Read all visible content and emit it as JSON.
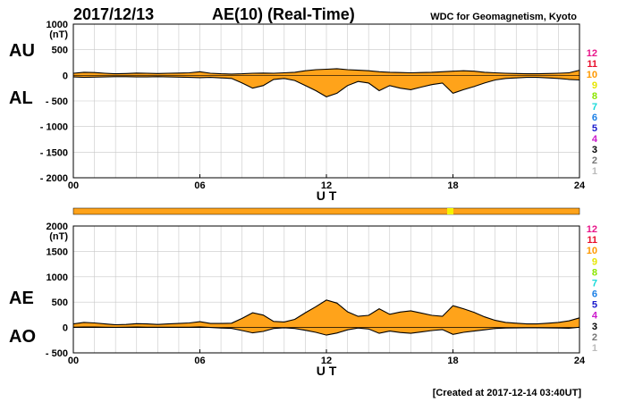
{
  "header": {
    "date": "2017/12/13",
    "title": "AE(10) (Real-Time)",
    "source": "WDC for Geomagnetism, Kyoto"
  },
  "footer": {
    "created": "[Created at 2017-12-14 03:40UT]"
  },
  "colors": {
    "fill": "#ffa31a",
    "outline": "#000000",
    "grid": "#c8c8c8",
    "status_bar": "#ffa31a",
    "status_highlight": "#f4f400"
  },
  "station_legend": [
    {
      "label": "12",
      "color": "#e8168a"
    },
    {
      "label": "11",
      "color": "#e8102c"
    },
    {
      "label": "10",
      "color": "#ff9900"
    },
    {
      "label": "9",
      "color": "#e6e600"
    },
    {
      "label": "8",
      "color": "#8be600"
    },
    {
      "label": "7",
      "color": "#19d9d9"
    },
    {
      "label": "6",
      "color": "#1a7fe6"
    },
    {
      "label": "5",
      "color": "#1a1acc"
    },
    {
      "label": "4",
      "color": "#cc19cc"
    },
    {
      "label": "3",
      "color": "#000000"
    },
    {
      "label": "2",
      "color": "#777777"
    },
    {
      "label": "1",
      "color": "#bbbbbb"
    }
  ],
  "chart_data": [
    {
      "type": "area",
      "units": "(nT)",
      "side_labels": [
        "AU",
        "AL"
      ],
      "xlabel": "U T",
      "xticks": [
        "00",
        "06",
        "12",
        "18",
        "24"
      ],
      "xlim": [
        0,
        24
      ],
      "yticks": [
        "1000",
        "500",
        "0",
        "- 500",
        "- 1000",
        "- 1500",
        "- 2000"
      ],
      "ylim": [
        -2000,
        1000
      ],
      "grid": true,
      "series": [
        {
          "key": "AU",
          "x": [
            0,
            0.5,
            1,
            1.5,
            2,
            2.5,
            3,
            3.5,
            4,
            4.5,
            5,
            5.5,
            6,
            6.5,
            7,
            7.5,
            8,
            8.5,
            9,
            9.5,
            10,
            10.5,
            11,
            11.5,
            12,
            12.5,
            13,
            13.5,
            14,
            14.5,
            15,
            15.5,
            16,
            16.5,
            17,
            17.5,
            18,
            18.5,
            19,
            19.5,
            20,
            20.5,
            21,
            21.5,
            22,
            22.5,
            23,
            23.5,
            24
          ],
          "values": [
            40,
            60,
            55,
            40,
            30,
            35,
            45,
            40,
            35,
            40,
            45,
            50,
            70,
            40,
            30,
            25,
            30,
            40,
            45,
            40,
            50,
            60,
            90,
            110,
            120,
            130,
            110,
            100,
            90,
            70,
            60,
            55,
            50,
            55,
            60,
            70,
            80,
            90,
            80,
            60,
            50,
            40,
            35,
            30,
            30,
            35,
            40,
            50,
            100
          ]
        },
        {
          "key": "AL",
          "x": [
            0,
            0.5,
            1,
            1.5,
            2,
            2.5,
            3,
            3.5,
            4,
            4.5,
            5,
            5.5,
            6,
            6.5,
            7,
            7.5,
            8,
            8.5,
            9,
            9.5,
            10,
            10.5,
            11,
            11.5,
            12,
            12.5,
            13,
            13.5,
            14,
            14.5,
            15,
            15.5,
            16,
            16.5,
            17,
            17.5,
            18,
            18.5,
            19,
            19.5,
            20,
            20.5,
            21,
            21.5,
            22,
            22.5,
            23,
            23.5,
            24
          ],
          "values": [
            -30,
            -40,
            -35,
            -30,
            -25,
            -25,
            -30,
            -30,
            -25,
            -30,
            -35,
            -40,
            -45,
            -40,
            -50,
            -60,
            -150,
            -250,
            -200,
            -80,
            -60,
            -100,
            -200,
            -300,
            -420,
            -350,
            -200,
            -120,
            -150,
            -300,
            -200,
            -250,
            -280,
            -230,
            -180,
            -150,
            -350,
            -280,
            -220,
            -150,
            -90,
            -60,
            -50,
            -40,
            -40,
            -50,
            -60,
            -80,
            -90
          ]
        }
      ]
    },
    {
      "type": "area",
      "units": "(nT)",
      "side_labels": [
        "AE",
        "AO"
      ],
      "xlabel": "U T",
      "xticks": [
        "00",
        "06",
        "12",
        "18",
        "24"
      ],
      "xlim": [
        0,
        24
      ],
      "yticks": [
        "2000",
        "1500",
        "1000",
        "500",
        "0",
        "- 500"
      ],
      "ylim": [
        -500,
        2000
      ],
      "grid": true,
      "series": [
        {
          "key": "AE",
          "x": [
            0,
            0.5,
            1,
            1.5,
            2,
            2.5,
            3,
            3.5,
            4,
            4.5,
            5,
            5.5,
            6,
            6.5,
            7,
            7.5,
            8,
            8.5,
            9,
            9.5,
            10,
            10.5,
            11,
            11.5,
            12,
            12.5,
            13,
            13.5,
            14,
            14.5,
            15,
            15.5,
            16,
            16.5,
            17,
            17.5,
            18,
            18.5,
            19,
            19.5,
            20,
            20.5,
            21,
            21.5,
            22,
            22.5,
            23,
            23.5,
            24
          ],
          "values": [
            70,
            100,
            90,
            70,
            55,
            60,
            75,
            70,
            60,
            70,
            80,
            90,
            115,
            80,
            80,
            85,
            180,
            290,
            245,
            120,
            110,
            160,
            290,
            410,
            540,
            480,
            310,
            220,
            240,
            370,
            260,
            305,
            330,
            285,
            240,
            220,
            430,
            370,
            300,
            210,
            140,
            100,
            85,
            70,
            70,
            85,
            100,
            130,
            190
          ]
        },
        {
          "key": "AO",
          "x": [
            0,
            0.5,
            1,
            1.5,
            2,
            2.5,
            3,
            3.5,
            4,
            4.5,
            5,
            5.5,
            6,
            6.5,
            7,
            7.5,
            8,
            8.5,
            9,
            9.5,
            10,
            10.5,
            11,
            11.5,
            12,
            12.5,
            13,
            13.5,
            14,
            14.5,
            15,
            15.5,
            16,
            16.5,
            17,
            17.5,
            18,
            18.5,
            19,
            19.5,
            20,
            20.5,
            21,
            21.5,
            22,
            22.5,
            23,
            23.5,
            24
          ],
          "values": [
            5,
            10,
            10,
            5,
            3,
            5,
            8,
            5,
            5,
            5,
            5,
            5,
            12,
            0,
            -10,
            -18,
            -60,
            -105,
            -78,
            -20,
            -5,
            -20,
            -55,
            -95,
            -150,
            -110,
            -45,
            -10,
            -30,
            -115,
            -70,
            -98,
            -115,
            -88,
            -60,
            -40,
            -135,
            -95,
            -70,
            -45,
            -20,
            -10,
            -8,
            -5,
            -5,
            -8,
            -10,
            -15,
            5
          ]
        }
      ]
    }
  ]
}
